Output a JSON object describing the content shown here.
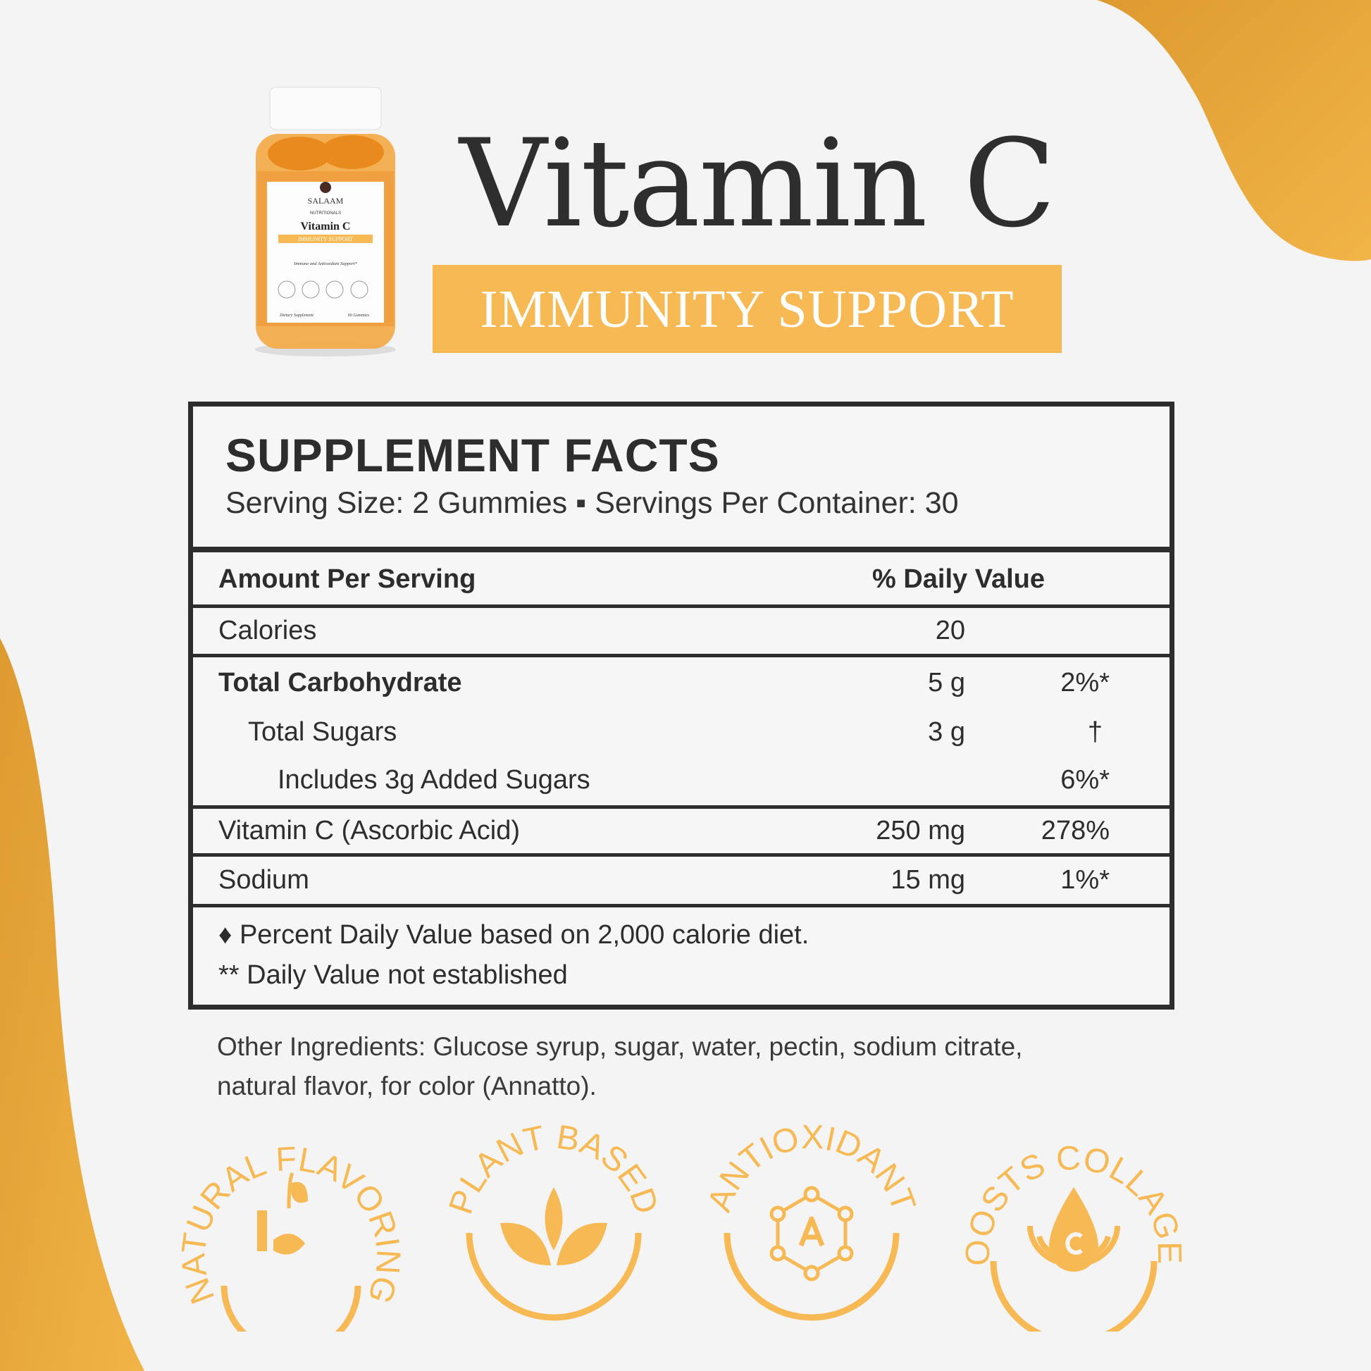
{
  "product": {
    "title": "Vitamin C",
    "subtitle": "IMMUNITY SUPPORT",
    "bottle_label": {
      "brand": "SALAAM",
      "brand_sub": "NUTRITIONALS",
      "name": "Vitamin C",
      "band": "IMMUNITY SUPPORT",
      "tagline": "Immune and Antioxidant Support*",
      "footer_left": "Dietary Supplement",
      "footer_right": "60 Gummies"
    }
  },
  "facts": {
    "heading": "SUPPLEMENT FACTS",
    "serving": "Serving Size: 2 Gummies ▪ Servings Per Container: 30",
    "col_amount": "Amount Per Serving",
    "col_dv": "% Daily Value",
    "rows": [
      {
        "label": "Calories",
        "amount": "20",
        "dv": ""
      },
      {
        "label": "Total Carbohydrate",
        "amount": "5 g",
        "dv": "2%*"
      },
      {
        "label": "Total Sugars",
        "amount": "3 g",
        "dv": "†"
      },
      {
        "label": "Includes 3g Added Sugars",
        "amount": "",
        "dv": "6%*"
      },
      {
        "label": "Vitamin C (Ascorbic Acid)",
        "amount": "250 mg",
        "dv": "278%"
      },
      {
        "label": "Sodium",
        "amount": "15 mg",
        "dv": "1%*"
      }
    ],
    "footnotes": [
      "♦ Percent Daily Value based on 2,000 calorie diet.",
      "** Daily Value not established"
    ]
  },
  "other_ingredients": [
    "Other Ingredients: Glucose syrup, sugar, water, pectin, sodium citrate,",
    "natural flavor, for color (Annatto)."
  ],
  "badges": [
    {
      "label": "NATURAL FLAVORING",
      "icon": "hand-sprout-icon"
    },
    {
      "label": "PLANT BASED",
      "icon": "leaves-icon"
    },
    {
      "label": "ANTIOXIDANT",
      "icon": "molecule-icon"
    },
    {
      "label": "BOOSTS COLLAGEN",
      "icon": "drop-icon"
    }
  ],
  "colors": {
    "accent": "#f6b954",
    "blob": "#dd9a30",
    "text": "#2d2d2d"
  }
}
